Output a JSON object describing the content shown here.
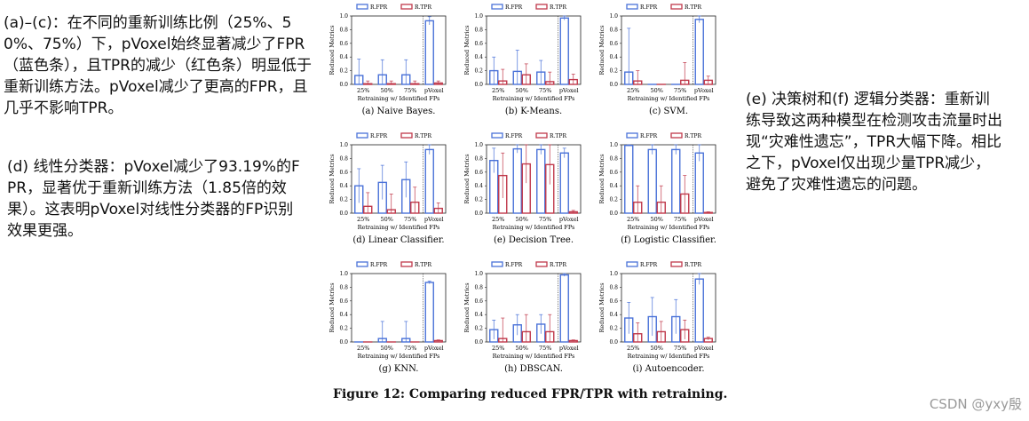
{
  "notes": {
    "left_top": "(a)–(c)：在不同的重新训练比例（25%、50%、75%）下，pVoxel始终显著减少了FPR（蓝色条），且TPR的减少（红色条）明显低于重新训练方法。pVoxel减少了更高的FPR，且几乎不影响TPR。",
    "left_mid": "(d) 线性分类器：pVoxel减少了93.19%的FPR，显著优于重新训练方法（1.85倍的效果）。这表明pVoxel对线性分类器的FP识别效果更强。",
    "right": "(e) 决策树和(f) 逻辑分类器：重新训练导致这两种模型在检测攻击流量时出现“灾难性遗忘”，TPR大幅下降。相比之下，pVoxel仅出现少量TPR减少，避免了灾难性遗忘的问题。"
  },
  "figure_caption": "Figure 12: Comparing reduced FPR/TPR with retraining.",
  "watermark": "CSDN @yxy殷",
  "colors": {
    "fpr": "#4a72d8",
    "tpr": "#c0394b"
  },
  "chart_data": [
    {
      "type": "bar",
      "caption": "(a) Naive Bayes.",
      "categories": [
        "25%",
        "50%",
        "75%",
        "pVoxel"
      ],
      "series": [
        {
          "name": "R.FPR",
          "values": [
            0.13,
            0.14,
            0.14,
            0.93
          ]
        },
        {
          "name": "R.TPR",
          "values": [
            0.01,
            0.01,
            0.01,
            0.02
          ]
        }
      ],
      "ylim": [
        0,
        1.0
      ],
      "yticks": [
        "0.0",
        "0.2",
        "0.4",
        "0.6",
        "0.8",
        "1.0"
      ],
      "ylabel": "Reduced Metrics",
      "xlabel": "Retraining w/ Identified FPs"
    },
    {
      "type": "bar",
      "caption": "(b) K-Means.",
      "categories": [
        "25%",
        "50%",
        "75%",
        "pVoxel"
      ],
      "series": [
        {
          "name": "R.FPR",
          "values": [
            0.2,
            0.19,
            0.18,
            0.97
          ]
        },
        {
          "name": "R.TPR",
          "values": [
            0.05,
            0.14,
            0.04,
            0.07
          ]
        }
      ],
      "ylim": [
        0,
        1.0
      ],
      "yticks": [
        "0.0",
        "0.2",
        "0.4",
        "0.6",
        "0.8",
        "1.0"
      ],
      "ylabel": "Reduced Metrics",
      "xlabel": "Retraining w/ Identified FPs"
    },
    {
      "type": "bar",
      "caption": "(c) SVM.",
      "categories": [
        "25%",
        "50%",
        "75%",
        "pVoxel"
      ],
      "series": [
        {
          "name": "R.FPR",
          "values": [
            0.18,
            0.0,
            0.0,
            0.95
          ]
        },
        {
          "name": "R.TPR",
          "values": [
            0.05,
            0.0,
            0.06,
            0.06
          ]
        }
      ],
      "ylim": [
        0,
        1.0
      ],
      "yticks": [
        "0.0",
        "0.2",
        "0.4",
        "0.6",
        "0.8",
        "1.0"
      ],
      "ylabel": "Reduced Metrics",
      "xlabel": "Retraining w/ Identified FPs"
    },
    {
      "type": "bar",
      "caption": "(d) Linear Classifier.",
      "categories": [
        "25%",
        "50%",
        "75%",
        "pVoxel"
      ],
      "series": [
        {
          "name": "R.FPR",
          "values": [
            0.4,
            0.45,
            0.49,
            0.93
          ]
        },
        {
          "name": "R.TPR",
          "values": [
            0.1,
            0.05,
            0.16,
            0.07
          ]
        }
      ],
      "ylim": [
        0,
        1.0
      ],
      "yticks": [
        "0.0",
        "0.2",
        "0.4",
        "0.6",
        "0.8",
        "1.0"
      ],
      "ylabel": "Reduced Metrics",
      "xlabel": "Retraining w/ Identified FPs"
    },
    {
      "type": "bar",
      "caption": "(e) Decision Tree.",
      "categories": [
        "25%",
        "50%",
        "75%",
        "pVoxel"
      ],
      "series": [
        {
          "name": "R.FPR",
          "values": [
            0.77,
            0.94,
            0.93,
            0.88
          ]
        },
        {
          "name": "R.TPR",
          "values": [
            0.55,
            0.72,
            0.71,
            0.02
          ]
        }
      ],
      "ylim": [
        0,
        1.0
      ],
      "yticks": [
        "0.0",
        "0.2",
        "0.4",
        "0.6",
        "0.8",
        "1.0"
      ],
      "ylabel": "Reduced Metrics",
      "xlabel": "Retraining w/ Identified FPs"
    },
    {
      "type": "bar",
      "caption": "(f) Logistic Classifier.",
      "categories": [
        "25%",
        "50%",
        "75%",
        "pVoxel"
      ],
      "series": [
        {
          "name": "R.FPR",
          "values": [
            0.99,
            0.93,
            0.93,
            0.88
          ]
        },
        {
          "name": "R.TPR",
          "values": [
            0.16,
            0.16,
            0.28,
            0.01
          ]
        }
      ],
      "ylim": [
        0,
        1.0
      ],
      "yticks": [
        "0.0",
        "0.2",
        "0.4",
        "0.6",
        "0.8",
        "1.0"
      ],
      "ylabel": "Reduced Metrics",
      "xlabel": "Retraining w/ Identified FPs"
    },
    {
      "type": "bar",
      "caption": "(g) KNN.",
      "categories": [
        "25%",
        "50%",
        "75%",
        "pVoxel"
      ],
      "series": [
        {
          "name": "R.FPR",
          "values": [
            0.0,
            0.05,
            0.05,
            0.87
          ]
        },
        {
          "name": "R.TPR",
          "values": [
            0.0,
            0.0,
            0.0,
            0.02
          ]
        }
      ],
      "ylim": [
        0,
        1.0
      ],
      "yticks": [
        "0.0",
        "0.2",
        "0.4",
        "0.6",
        "0.8",
        "1.0"
      ],
      "ylabel": "Reduced Metrics",
      "xlabel": "Retraining w/ Identified FPs"
    },
    {
      "type": "bar",
      "caption": "(h) DBSCAN.",
      "categories": [
        "25%",
        "50%",
        "75%",
        "pVoxel"
      ],
      "series": [
        {
          "name": "R.FPR",
          "values": [
            0.18,
            0.25,
            0.26,
            0.98
          ]
        },
        {
          "name": "R.TPR",
          "values": [
            0.05,
            0.15,
            0.15,
            0.02
          ]
        }
      ],
      "ylim": [
        0,
        1.0
      ],
      "yticks": [
        "0.0",
        "0.2",
        "0.4",
        "0.6",
        "0.8",
        "1.0"
      ],
      "ylabel": "Reduced Metrics",
      "xlabel": "Retraining w/ Identified FPs"
    },
    {
      "type": "bar",
      "caption": "(i) Autoencoder.",
      "categories": [
        "25%",
        "50%",
        "75%",
        "pVoxel"
      ],
      "series": [
        {
          "name": "R.FPR",
          "values": [
            0.35,
            0.37,
            0.37,
            0.92
          ]
        },
        {
          "name": "R.TPR",
          "values": [
            0.12,
            0.15,
            0.18,
            0.05
          ]
        }
      ],
      "ylim": [
        0,
        1.0
      ],
      "yticks": [
        "0.0",
        "0.2",
        "0.4",
        "0.6",
        "0.8",
        "1.0"
      ],
      "ylabel": "Reduced Metrics",
      "xlabel": "Retraining w/ Identified FPs"
    }
  ]
}
